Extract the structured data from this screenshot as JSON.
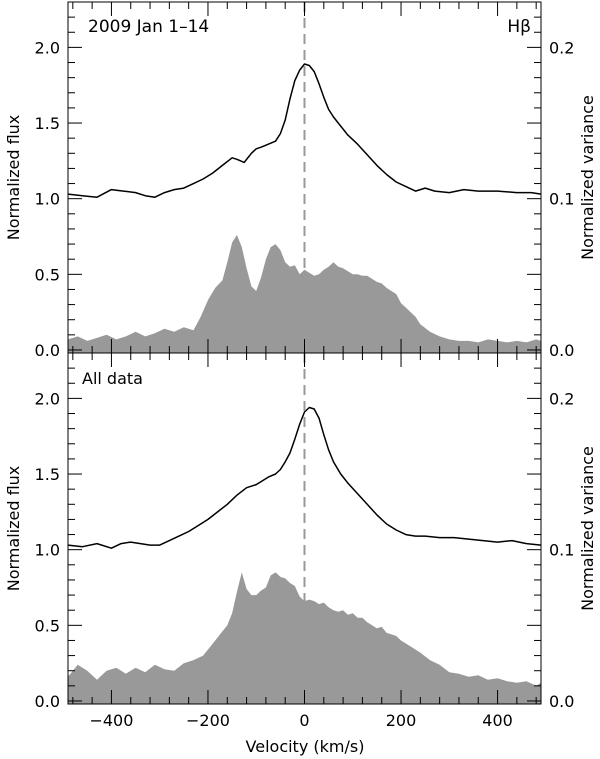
{
  "chart_data": [
    {
      "type": "line",
      "panel_label": "2009 Jan 1–14",
      "line_label": "Hβ",
      "xlabel": "",
      "ylabel": "Normalized flux",
      "ylabel_right": "Normalized variance",
      "xlim": [
        -490,
        490
      ],
      "ylim": [
        -0.02,
        2.3
      ],
      "ylim_right": [
        -0.002,
        0.23
      ],
      "yticks": [
        0.0,
        0.5,
        1.0,
        1.5,
        2.0
      ],
      "ytick_labels": [
        "0.0",
        "0.5",
        "1.0",
        "1.5",
        "2.0"
      ],
      "yticks_right": [
        0.0,
        0.1,
        0.2
      ],
      "ytick_labels_right": [
        "0.0",
        "0.1",
        "0.2"
      ],
      "reference_line_x": 0,
      "series": [
        {
          "style": "line",
          "axis": "left",
          "x": [
            -490,
            -460,
            -430,
            -400,
            -375,
            -350,
            -330,
            -310,
            -290,
            -270,
            -250,
            -230,
            -210,
            -190,
            -170,
            -150,
            -140,
            -125,
            -110,
            -100,
            -90,
            -75,
            -60,
            -50,
            -40,
            -30,
            -20,
            -10,
            0,
            10,
            20,
            30,
            40,
            50,
            60,
            75,
            90,
            110,
            130,
            150,
            170,
            190,
            210,
            230,
            250,
            270,
            300,
            330,
            360,
            400,
            440,
            470,
            490
          ],
          "y": [
            1.03,
            1.02,
            1.01,
            1.06,
            1.05,
            1.04,
            1.02,
            1.01,
            1.04,
            1.06,
            1.07,
            1.1,
            1.13,
            1.17,
            1.22,
            1.27,
            1.26,
            1.24,
            1.3,
            1.33,
            1.34,
            1.36,
            1.38,
            1.43,
            1.52,
            1.66,
            1.78,
            1.85,
            1.89,
            1.88,
            1.84,
            1.76,
            1.67,
            1.59,
            1.54,
            1.48,
            1.42,
            1.36,
            1.29,
            1.22,
            1.16,
            1.11,
            1.08,
            1.05,
            1.07,
            1.05,
            1.04,
            1.06,
            1.05,
            1.05,
            1.04,
            1.04,
            1.03
          ]
        },
        {
          "style": "filled",
          "axis": "right",
          "x": [
            -490,
            -470,
            -450,
            -430,
            -410,
            -390,
            -370,
            -350,
            -330,
            -310,
            -290,
            -270,
            -250,
            -230,
            -215,
            -200,
            -185,
            -170,
            -160,
            -150,
            -140,
            -130,
            -120,
            -110,
            -100,
            -90,
            -80,
            -70,
            -60,
            -50,
            -40,
            -30,
            -20,
            -10,
            0,
            10,
            20,
            30,
            40,
            50,
            60,
            70,
            80,
            90,
            100,
            110,
            120,
            130,
            140,
            150,
            160,
            170,
            180,
            190,
            200,
            210,
            220,
            230,
            240,
            260,
            280,
            300,
            320,
            340,
            360,
            380,
            400,
            420,
            440,
            460,
            480,
            490
          ],
          "y": [
            0.007,
            0.009,
            0.006,
            0.008,
            0.01,
            0.007,
            0.009,
            0.012,
            0.009,
            0.011,
            0.014,
            0.012,
            0.015,
            0.013,
            0.022,
            0.033,
            0.041,
            0.046,
            0.058,
            0.071,
            0.076,
            0.068,
            0.054,
            0.042,
            0.039,
            0.048,
            0.06,
            0.068,
            0.07,
            0.066,
            0.058,
            0.055,
            0.056,
            0.05,
            0.053,
            0.051,
            0.049,
            0.05,
            0.053,
            0.055,
            0.058,
            0.055,
            0.054,
            0.052,
            0.05,
            0.05,
            0.049,
            0.049,
            0.047,
            0.045,
            0.044,
            0.041,
            0.039,
            0.037,
            0.031,
            0.028,
            0.025,
            0.022,
            0.017,
            0.012,
            0.009,
            0.007,
            0.006,
            0.006,
            0.005,
            0.007,
            0.006,
            0.005,
            0.006,
            0.005,
            0.007,
            0.006
          ]
        }
      ]
    },
    {
      "type": "line",
      "panel_label": "All data",
      "line_label": "",
      "xlabel": "Velocity (km/s)",
      "ylabel": "Normalized flux",
      "ylabel_right": "Normalized variance",
      "xlim": [
        -490,
        490
      ],
      "ylim": [
        -0.02,
        2.3
      ],
      "ylim_right": [
        -0.002,
        0.23
      ],
      "xticks": [
        -400,
        -200,
        0,
        200,
        400
      ],
      "xtick_labels": [
        "−400",
        "−200",
        "0",
        "200",
        "400"
      ],
      "yticks": [
        0.0,
        0.5,
        1.0,
        1.5,
        2.0
      ],
      "ytick_labels": [
        "0.0",
        "0.5",
        "1.0",
        "1.5",
        "2.0"
      ],
      "yticks_right": [
        0.0,
        0.1,
        0.2
      ],
      "ytick_labels_right": [
        "0.0",
        "0.1",
        "0.2"
      ],
      "reference_line_x": 0,
      "series": [
        {
          "style": "line",
          "axis": "left",
          "x": [
            -490,
            -460,
            -430,
            -400,
            -380,
            -360,
            -340,
            -320,
            -300,
            -280,
            -260,
            -240,
            -220,
            -200,
            -180,
            -160,
            -140,
            -120,
            -100,
            -90,
            -75,
            -60,
            -50,
            -40,
            -30,
            -20,
            -10,
            0,
            10,
            20,
            30,
            40,
            50,
            60,
            75,
            90,
            110,
            130,
            150,
            170,
            190,
            210,
            230,
            250,
            280,
            310,
            340,
            370,
            400,
            430,
            460,
            490
          ],
          "y": [
            1.03,
            1.02,
            1.04,
            1.01,
            1.04,
            1.05,
            1.04,
            1.03,
            1.03,
            1.06,
            1.09,
            1.12,
            1.16,
            1.2,
            1.25,
            1.3,
            1.36,
            1.41,
            1.43,
            1.45,
            1.48,
            1.5,
            1.53,
            1.58,
            1.64,
            1.73,
            1.83,
            1.91,
            1.94,
            1.93,
            1.87,
            1.76,
            1.66,
            1.58,
            1.5,
            1.44,
            1.37,
            1.3,
            1.23,
            1.17,
            1.13,
            1.1,
            1.09,
            1.09,
            1.08,
            1.08,
            1.07,
            1.06,
            1.05,
            1.06,
            1.04,
            1.03
          ]
        },
        {
          "style": "filled",
          "axis": "right",
          "x": [
            -490,
            -470,
            -450,
            -430,
            -410,
            -390,
            -370,
            -350,
            -330,
            -310,
            -290,
            -270,
            -250,
            -230,
            -210,
            -190,
            -170,
            -160,
            -150,
            -140,
            -130,
            -120,
            -110,
            -100,
            -90,
            -80,
            -70,
            -60,
            -50,
            -40,
            -30,
            -20,
            -10,
            0,
            10,
            20,
            30,
            40,
            50,
            60,
            70,
            80,
            90,
            100,
            110,
            120,
            130,
            140,
            150,
            160,
            170,
            180,
            190,
            200,
            220,
            240,
            260,
            280,
            300,
            320,
            340,
            360,
            380,
            400,
            420,
            440,
            460,
            480,
            490
          ],
          "y": [
            0.016,
            0.024,
            0.02,
            0.014,
            0.02,
            0.022,
            0.018,
            0.022,
            0.019,
            0.024,
            0.021,
            0.02,
            0.025,
            0.027,
            0.03,
            0.038,
            0.046,
            0.05,
            0.058,
            0.072,
            0.085,
            0.074,
            0.07,
            0.07,
            0.073,
            0.075,
            0.083,
            0.085,
            0.082,
            0.081,
            0.078,
            0.076,
            0.069,
            0.066,
            0.067,
            0.066,
            0.064,
            0.065,
            0.062,
            0.06,
            0.059,
            0.06,
            0.057,
            0.058,
            0.055,
            0.055,
            0.052,
            0.05,
            0.048,
            0.049,
            0.045,
            0.044,
            0.043,
            0.04,
            0.036,
            0.032,
            0.027,
            0.024,
            0.019,
            0.018,
            0.016,
            0.017,
            0.014,
            0.015,
            0.013,
            0.012,
            0.013,
            0.01,
            0.012
          ]
        }
      ]
    }
  ]
}
